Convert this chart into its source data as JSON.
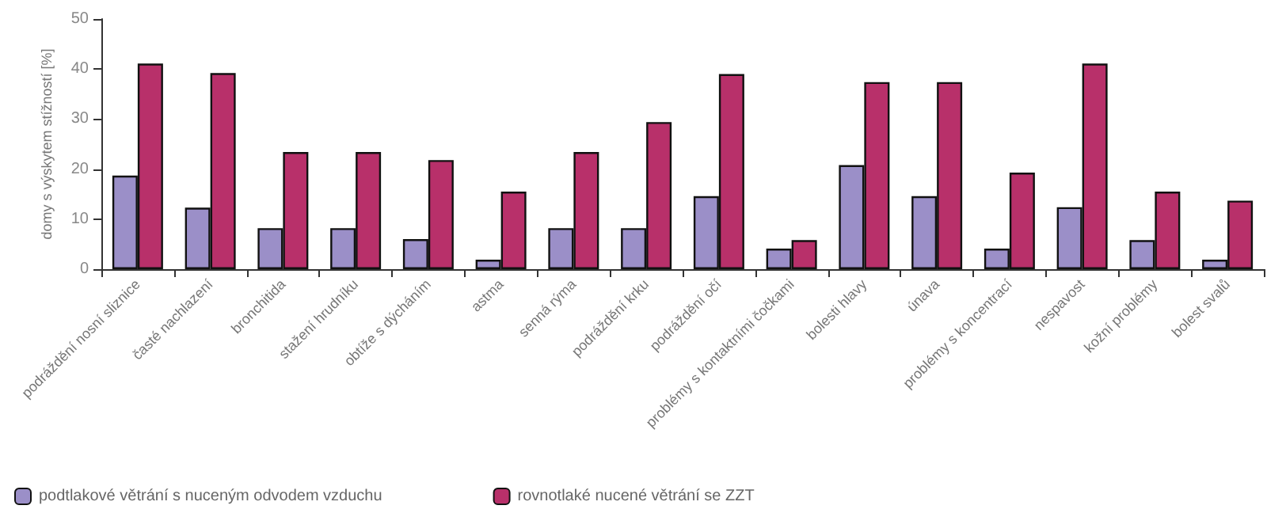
{
  "chart_data": {
    "type": "bar",
    "ylabel": "domy s výskytem stížností [%]",
    "categories": [
      "podráždění nosní sliznice",
      "časté nachlazení",
      "bronchitida",
      "stažení hrudníku",
      "obtíže s dýcháním",
      "astma",
      "senná rýma",
      "podráždění krku",
      "podráždění očí",
      "problémy s kontaktními čočkami",
      "bolesti hlavy",
      "únava",
      "problémy s koncentrací",
      "nespavost",
      "kožní problémy",
      "bolest svalů"
    ],
    "series": [
      {
        "name": "podtlakové větrání s nuceným odvodem vzduchu",
        "color": "#9b8fc8",
        "values": [
          18.7,
          12.3,
          8.2,
          8.2,
          6.0,
          1.9,
          8.2,
          8.2,
          14.6,
          4.1,
          20.8,
          14.6,
          4.1,
          12.4,
          5.8,
          1.9
        ]
      },
      {
        "name": "rovnotlaké nucené větrání se ZZT",
        "color": "#b8306a",
        "values": [
          41.1,
          39.2,
          23.4,
          23.4,
          21.8,
          15.5,
          23.4,
          29.4,
          39.0,
          5.8,
          37.4,
          37.4,
          19.3,
          41.1,
          15.5,
          13.7
        ]
      }
    ],
    "ylim": [
      0,
      50
    ],
    "yticks": [
      0,
      10,
      20,
      30,
      40,
      50
    ],
    "grid": false,
    "legend": "bottom left"
  }
}
